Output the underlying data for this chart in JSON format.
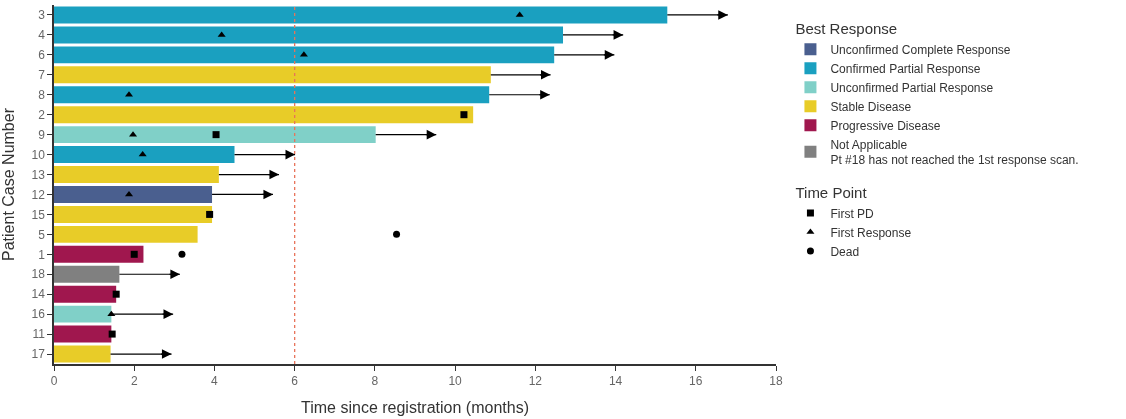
{
  "chart_data": {
    "type": "bar",
    "orientation": "horizontal",
    "xlabel": "Time since registration (months)",
    "ylabel": "Patient Case Number",
    "legend_title": "Best Response",
    "annotations": [
      "Time Point"
    ],
    "categories": [
      "3",
      "4",
      "6",
      "7",
      "8",
      "2",
      "9",
      "10",
      "13",
      "12",
      "15",
      "5",
      "1",
      "18",
      "14",
      "16",
      "11",
      "17"
    ],
    "series": [
      {
        "name": "Unconfirmed Complete Response",
        "color": "#4a5f8f",
        "values": [
          null,
          null,
          null,
          null,
          null,
          null,
          null,
          null,
          null,
          3.94,
          null,
          null,
          null,
          null,
          null,
          null,
          null,
          null
        ],
        "errors": [
          null,
          null,
          null,
          null,
          null,
          null,
          null,
          null,
          null,
          [
            3.94,
            5.46
          ],
          null,
          null,
          null,
          null,
          null,
          null,
          null,
          null
        ]
      },
      {
        "name": "Confirmed Partial Response",
        "color": "#1aa0c0",
        "values": [
          15.29,
          12.69,
          12.47,
          null,
          10.85,
          null,
          null,
          4.5,
          null,
          null,
          null,
          null,
          null,
          null,
          null,
          null,
          null,
          null
        ],
        "errors": [
          [
            15.29,
            16.8
          ],
          [
            12.69,
            14.19
          ],
          [
            12.47,
            13.97
          ],
          null,
          [
            10.85,
            12.36
          ],
          null,
          null,
          [
            4.5,
            6.01
          ],
          null,
          null,
          null,
          null,
          null,
          null,
          null,
          null,
          null,
          null
        ]
      },
      {
        "name": "Unconfirmed Partial Response",
        "color": "#80d0c8",
        "values": [
          null,
          null,
          null,
          null,
          null,
          null,
          8.02,
          null,
          null,
          null,
          null,
          null,
          null,
          null,
          null,
          1.43,
          null,
          null
        ],
        "errors": [
          null,
          null,
          null,
          null,
          null,
          null,
          [
            8.02,
            9.53
          ],
          null,
          null,
          null,
          null,
          null,
          null,
          null,
          null,
          [
            1.43,
            2.97
          ],
          null,
          null
        ]
      },
      {
        "name": "Stable Disease",
        "color": "#e8cc28",
        "values": [
          null,
          null,
          null,
          10.89,
          null,
          10.45,
          null,
          null,
          4.11,
          null,
          3.94,
          3.58,
          null,
          null,
          null,
          null,
          null,
          1.41
        ],
        "errors": [
          null,
          null,
          null,
          [
            10.89,
            12.38
          ],
          null,
          null,
          null,
          null,
          [
            4.11,
            5.61
          ],
          null,
          null,
          null,
          null,
          null,
          null,
          null,
          null,
          [
            1.41,
            2.93
          ]
        ]
      },
      {
        "name": "Progressive Disease",
        "color": "#a0174e",
        "values": [
          null,
          null,
          null,
          null,
          null,
          null,
          null,
          null,
          null,
          null,
          null,
          null,
          2.23,
          null,
          1.55,
          null,
          1.43,
          null
        ]
      },
      {
        "name": "Not Applicable\nPt #18 has not reached the 1st response scan.",
        "color": "#808080",
        "values": [
          null,
          null,
          null,
          null,
          null,
          null,
          null,
          null,
          null,
          null,
          null,
          null,
          null,
          1.63,
          null,
          null,
          null,
          null
        ],
        "errors": [
          null,
          null,
          null,
          null,
          null,
          null,
          null,
          null,
          null,
          null,
          null,
          null,
          null,
          [
            1.63,
            3.14
          ],
          null,
          null,
          null,
          null
        ]
      },
      {
        "type": "scatter",
        "name": "First PD",
        "marker": "square",
        "color": "#000000",
        "values": [
          null,
          null,
          null,
          null,
          null,
          10.22,
          4.04,
          null,
          null,
          null,
          3.88,
          null,
          2.0,
          null,
          1.55,
          null,
          1.45,
          null
        ]
      },
      {
        "type": "scatter",
        "name": "First Response",
        "marker": "triangle",
        "color": "#000000",
        "values": [
          11.61,
          4.18,
          6.23,
          null,
          1.87,
          null,
          1.97,
          2.21,
          null,
          1.87,
          null,
          null,
          null,
          null,
          null,
          1.43,
          null,
          null
        ]
      },
      {
        "type": "scatter",
        "name": "Dead",
        "marker": "circle",
        "color": "#000000",
        "values": [
          null,
          null,
          null,
          null,
          null,
          null,
          null,
          null,
          null,
          null,
          null,
          8.54,
          3.19,
          null,
          null,
          null,
          null,
          null
        ]
      }
    ],
    "ref_lines": [
      {
        "axis": "x",
        "value": 6,
        "color": "#e8735a",
        "line_style": "dotted"
      }
    ],
    "xlim": [
      0,
      18
    ],
    "xticks": [
      0,
      2,
      4,
      6,
      8,
      10,
      12,
      14,
      16,
      18
    ],
    "legend": "right"
  }
}
